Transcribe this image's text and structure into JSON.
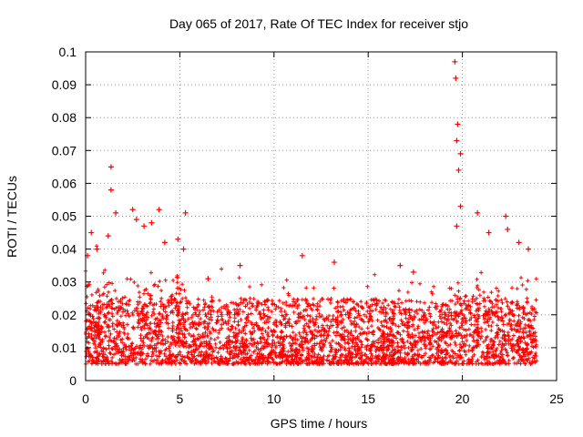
{
  "chart_data": {
    "type": "scatter",
    "title": "Day 065 of 2017, Rate Of TEC Index for receiver stjo",
    "xlabel": "GPS time / hours",
    "ylabel": "ROTI / TECUs",
    "xlim": [
      0,
      25
    ],
    "ylim": [
      0,
      0.1
    ],
    "xticks": [
      "0",
      "5",
      "10",
      "15",
      "20",
      "25"
    ],
    "yticks": [
      "0",
      "0.01",
      "0.02",
      "0.03",
      "0.04",
      "0.05",
      "0.06",
      "0.07",
      "0.08",
      "0.09",
      "0.1"
    ],
    "grid": true,
    "marker": "+",
    "color": "#ff0000",
    "data_extent_hours": [
      0,
      23.95
    ],
    "baseline_band": [
      0.005,
      0.025
    ],
    "peaks": [
      {
        "x": 0.1,
        "y": 0.038
      },
      {
        "x": 0.3,
        "y": 0.045
      },
      {
        "x": 0.6,
        "y": 0.04
      },
      {
        "x": 1.2,
        "y": 0.044
      },
      {
        "x": 1.35,
        "y": 0.065
      },
      {
        "x": 1.35,
        "y": 0.058
      },
      {
        "x": 1.6,
        "y": 0.051
      },
      {
        "x": 2.5,
        "y": 0.052
      },
      {
        "x": 2.7,
        "y": 0.049
      },
      {
        "x": 3.1,
        "y": 0.047
      },
      {
        "x": 3.5,
        "y": 0.048
      },
      {
        "x": 3.9,
        "y": 0.052
      },
      {
        "x": 4.2,
        "y": 0.042
      },
      {
        "x": 4.9,
        "y": 0.043
      },
      {
        "x": 5.3,
        "y": 0.051
      },
      {
        "x": 5.2,
        "y": 0.04
      },
      {
        "x": 6.5,
        "y": 0.031
      },
      {
        "x": 8.2,
        "y": 0.035
      },
      {
        "x": 11.5,
        "y": 0.038
      },
      {
        "x": 13.2,
        "y": 0.036
      },
      {
        "x": 16.7,
        "y": 0.035
      },
      {
        "x": 17.4,
        "y": 0.033
      },
      {
        "x": 19.6,
        "y": 0.097
      },
      {
        "x": 19.65,
        "y": 0.092
      },
      {
        "x": 19.75,
        "y": 0.078
      },
      {
        "x": 19.7,
        "y": 0.073
      },
      {
        "x": 19.9,
        "y": 0.069
      },
      {
        "x": 19.8,
        "y": 0.064
      },
      {
        "x": 19.9,
        "y": 0.053
      },
      {
        "x": 19.7,
        "y": 0.047
      },
      {
        "x": 20.8,
        "y": 0.051
      },
      {
        "x": 21.4,
        "y": 0.045
      },
      {
        "x": 22.3,
        "y": 0.05
      },
      {
        "x": 22.4,
        "y": 0.046
      },
      {
        "x": 23.0,
        "y": 0.042
      },
      {
        "x": 23.5,
        "y": 0.04
      }
    ]
  }
}
